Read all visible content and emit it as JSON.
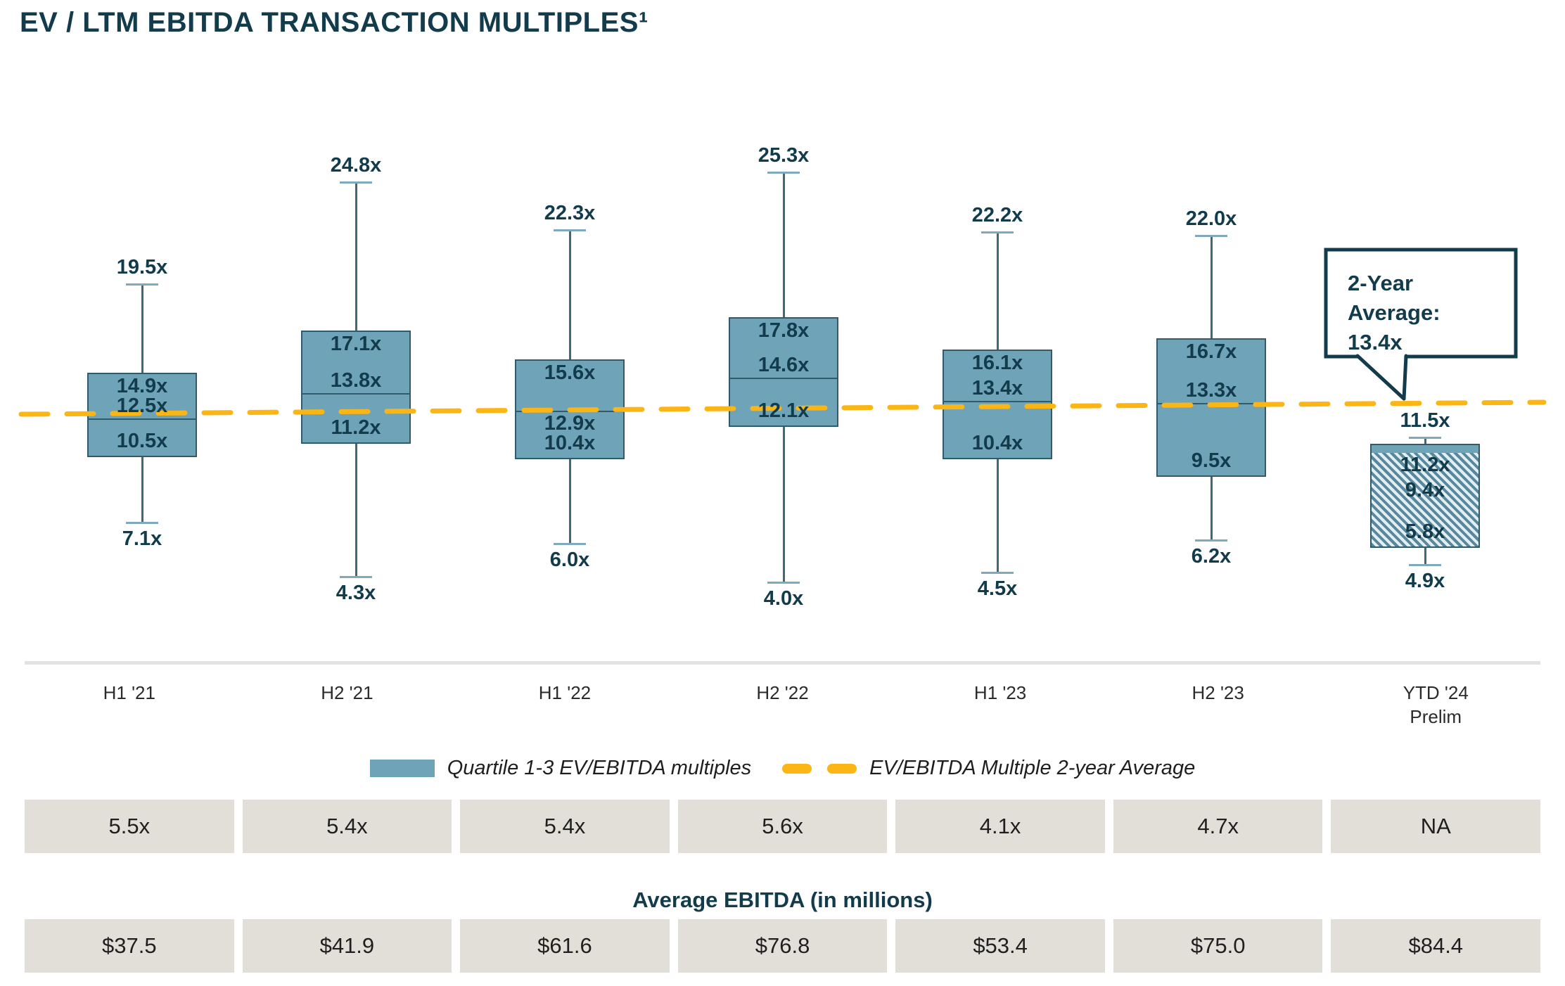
{
  "page": {
    "title": "EV / LTM EBITDA TRANSACTION MULTIPLES¹"
  },
  "chart_data": {
    "type": "boxplot",
    "title": "EV / LTM EBITDA Transaction Multiples",
    "unit_suffix": "x",
    "ylim": [
      0,
      26
    ],
    "grid": false,
    "categories": [
      "H1 '21",
      "H2 '21",
      "H1 '22",
      "H2 '22",
      "H1 '23",
      "H2 '23",
      "YTD '24 Prelim"
    ],
    "x_axis_labels": [
      [
        "H1 '21"
      ],
      [
        "H2 '21"
      ],
      [
        "H1 '22"
      ],
      [
        "H2 '22"
      ],
      [
        "H1 '23"
      ],
      [
        "H2 '23"
      ],
      [
        "YTD '24",
        "Prelim"
      ]
    ],
    "series": [
      {
        "period": "H1 '21",
        "high": 19.5,
        "q3": 14.9,
        "median": 12.5,
        "q1": 10.5,
        "low": 7.1,
        "hatched": false,
        "median_label_below": false
      },
      {
        "period": "H2 '21",
        "high": 24.8,
        "q3": 17.1,
        "median": 13.8,
        "q1": 11.2,
        "low": 4.3,
        "hatched": false,
        "median_label_below": false
      },
      {
        "period": "H1 '22",
        "high": 22.3,
        "q3": 15.6,
        "median": 12.9,
        "q1": 10.4,
        "low": 6.0,
        "hatched": false,
        "median_label_below": true
      },
      {
        "period": "H2 '22",
        "high": 25.3,
        "q3": 17.8,
        "median": 14.6,
        "q1": 12.1,
        "low": 4.0,
        "hatched": false,
        "median_label_below": false
      },
      {
        "period": "H1 '23",
        "high": 22.2,
        "q3": 16.1,
        "median": 13.4,
        "q1": 10.4,
        "low": 4.5,
        "hatched": false,
        "median_label_below": false
      },
      {
        "period": "H2 '23",
        "high": 22.0,
        "q3": 16.7,
        "median": 13.3,
        "q1": 9.5,
        "low": 6.2,
        "hatched": false,
        "median_label_below": false
      },
      {
        "period": "YTD '24 Prelim",
        "high": 11.5,
        "q3": 11.2,
        "median": 9.4,
        "q1": 5.8,
        "low": 4.9,
        "hatched": true,
        "median_label_below": true
      }
    ],
    "average_line": {
      "value": 13.4,
      "color": "#FBB616",
      "callout_line1": "2-Year Average:",
      "callout_line2": "13.4x"
    },
    "legend": [
      {
        "swatch": "box",
        "label": "Quartile 1-3 EV/EBITDA multiples"
      },
      {
        "swatch": "dashes",
        "label": "EV/EBITDA Multiple 2-year Average"
      }
    ],
    "legend_position": "bottom"
  },
  "multiples_row": {
    "values": [
      "5.5x",
      "5.4x",
      "5.4x",
      "5.6x",
      "4.1x",
      "4.7x",
      "NA"
    ]
  },
  "ebitda_section": {
    "heading": "Average EBITDA (in millions)",
    "values": [
      "$37.5",
      "$41.9",
      "$61.6",
      "$76.8",
      "$53.4",
      "$75.0",
      "$84.4"
    ]
  },
  "colors": {
    "accent_dark": "#123B4C",
    "box_fill": "#6FA3B7",
    "box_border": "#2F5B6B",
    "average_line": "#FBB616",
    "cell_bg": "#E2DFD9"
  }
}
